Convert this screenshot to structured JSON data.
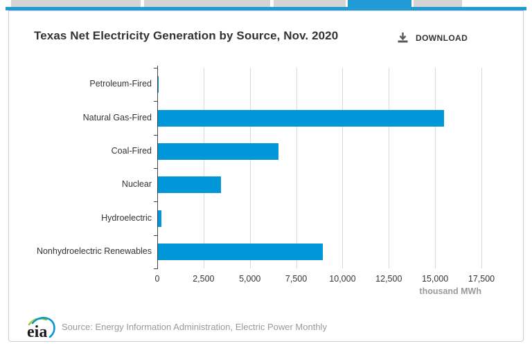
{
  "tabs": {
    "items": [
      {
        "id": "tab-1",
        "active": false
      },
      {
        "id": "tab-2",
        "active": false
      },
      {
        "id": "tab-3",
        "active": false
      },
      {
        "id": "tab-4",
        "active": true
      },
      {
        "id": "tab-5",
        "active": false
      }
    ]
  },
  "header": {
    "title": "Texas Net Electricity Generation by Source, Nov. 2020",
    "download_label": "DOWNLOAD"
  },
  "chart_data": {
    "type": "bar",
    "orientation": "horizontal",
    "title": "Texas Net Electricity Generation by Source, Nov. 2020",
    "categories": [
      "Petroleum-Fired",
      "Natural Gas-Fired",
      "Coal-Fired",
      "Nuclear",
      "Hydroelectric",
      "Nonhydroelectric Renewables"
    ],
    "values": [
      30,
      15450,
      6500,
      3400,
      175,
      8900
    ],
    "xlabel": "thousand MWh",
    "ylabel": "",
    "xlim": [
      0,
      17500
    ],
    "xticks": [
      0,
      2500,
      5000,
      7500,
      10000,
      12500,
      15000,
      17500
    ],
    "grid": true,
    "legend": "none",
    "bar_color": "#0096d7"
  },
  "footer": {
    "logo_text": "eia",
    "source": "Source: Energy Information Administration, Electric Power Monthly"
  },
  "colors": {
    "accent": "#209bd8",
    "bar": "#0096d7",
    "tab_gray": "#d4d4d4",
    "muted_text": "#999999"
  }
}
